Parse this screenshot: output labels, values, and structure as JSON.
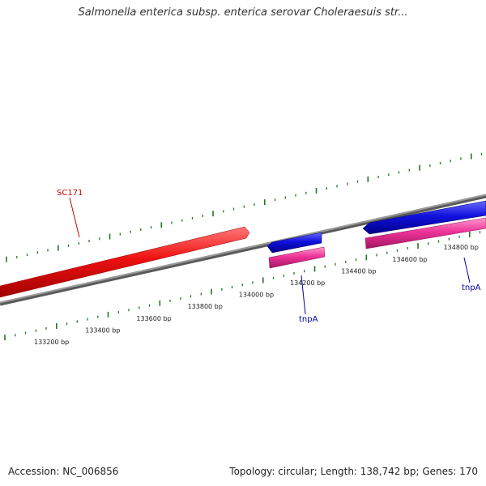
{
  "title": "Salmonella enterica subsp. enterica serovar Choleraesuis str...",
  "footer": {
    "accession": "Accession: NC_006856",
    "summary": "Topology: circular; Length: 138,742 bp; Genes: 170"
  },
  "scale": {
    "unit": "bp",
    "labels": [
      {
        "pos": 133200,
        "text": "133200 bp"
      },
      {
        "pos": 133400,
        "text": "133400 bp"
      },
      {
        "pos": 133600,
        "text": "133600 bp"
      },
      {
        "pos": 133800,
        "text": "133800 bp"
      },
      {
        "pos": 134000,
        "text": "134000 bp"
      },
      {
        "pos": 134200,
        "text": "134200 bp"
      },
      {
        "pos": 134400,
        "text": "134400 bp"
      },
      {
        "pos": 134600,
        "text": "134600 bp"
      },
      {
        "pos": 134800,
        "text": "134800 bp"
      }
    ]
  },
  "features": [
    {
      "name": "SC171",
      "track": "forward",
      "color": "#ee1111",
      "strand": "+"
    },
    {
      "name": "tnpA",
      "track": "reverse",
      "color": "#1111dd",
      "strand": "-"
    },
    {
      "name": "tnpA",
      "track": "reverse",
      "color": "#1111dd",
      "strand": "-"
    }
  ],
  "colors": {
    "backbone": "#808080",
    "tick": "#1f7a1f",
    "cds": "#ee3399",
    "forward_gene": "#ee1111",
    "reverse_gene": "#1111dd",
    "forward_label": "#cc0000",
    "reverse_label": "#000099"
  }
}
